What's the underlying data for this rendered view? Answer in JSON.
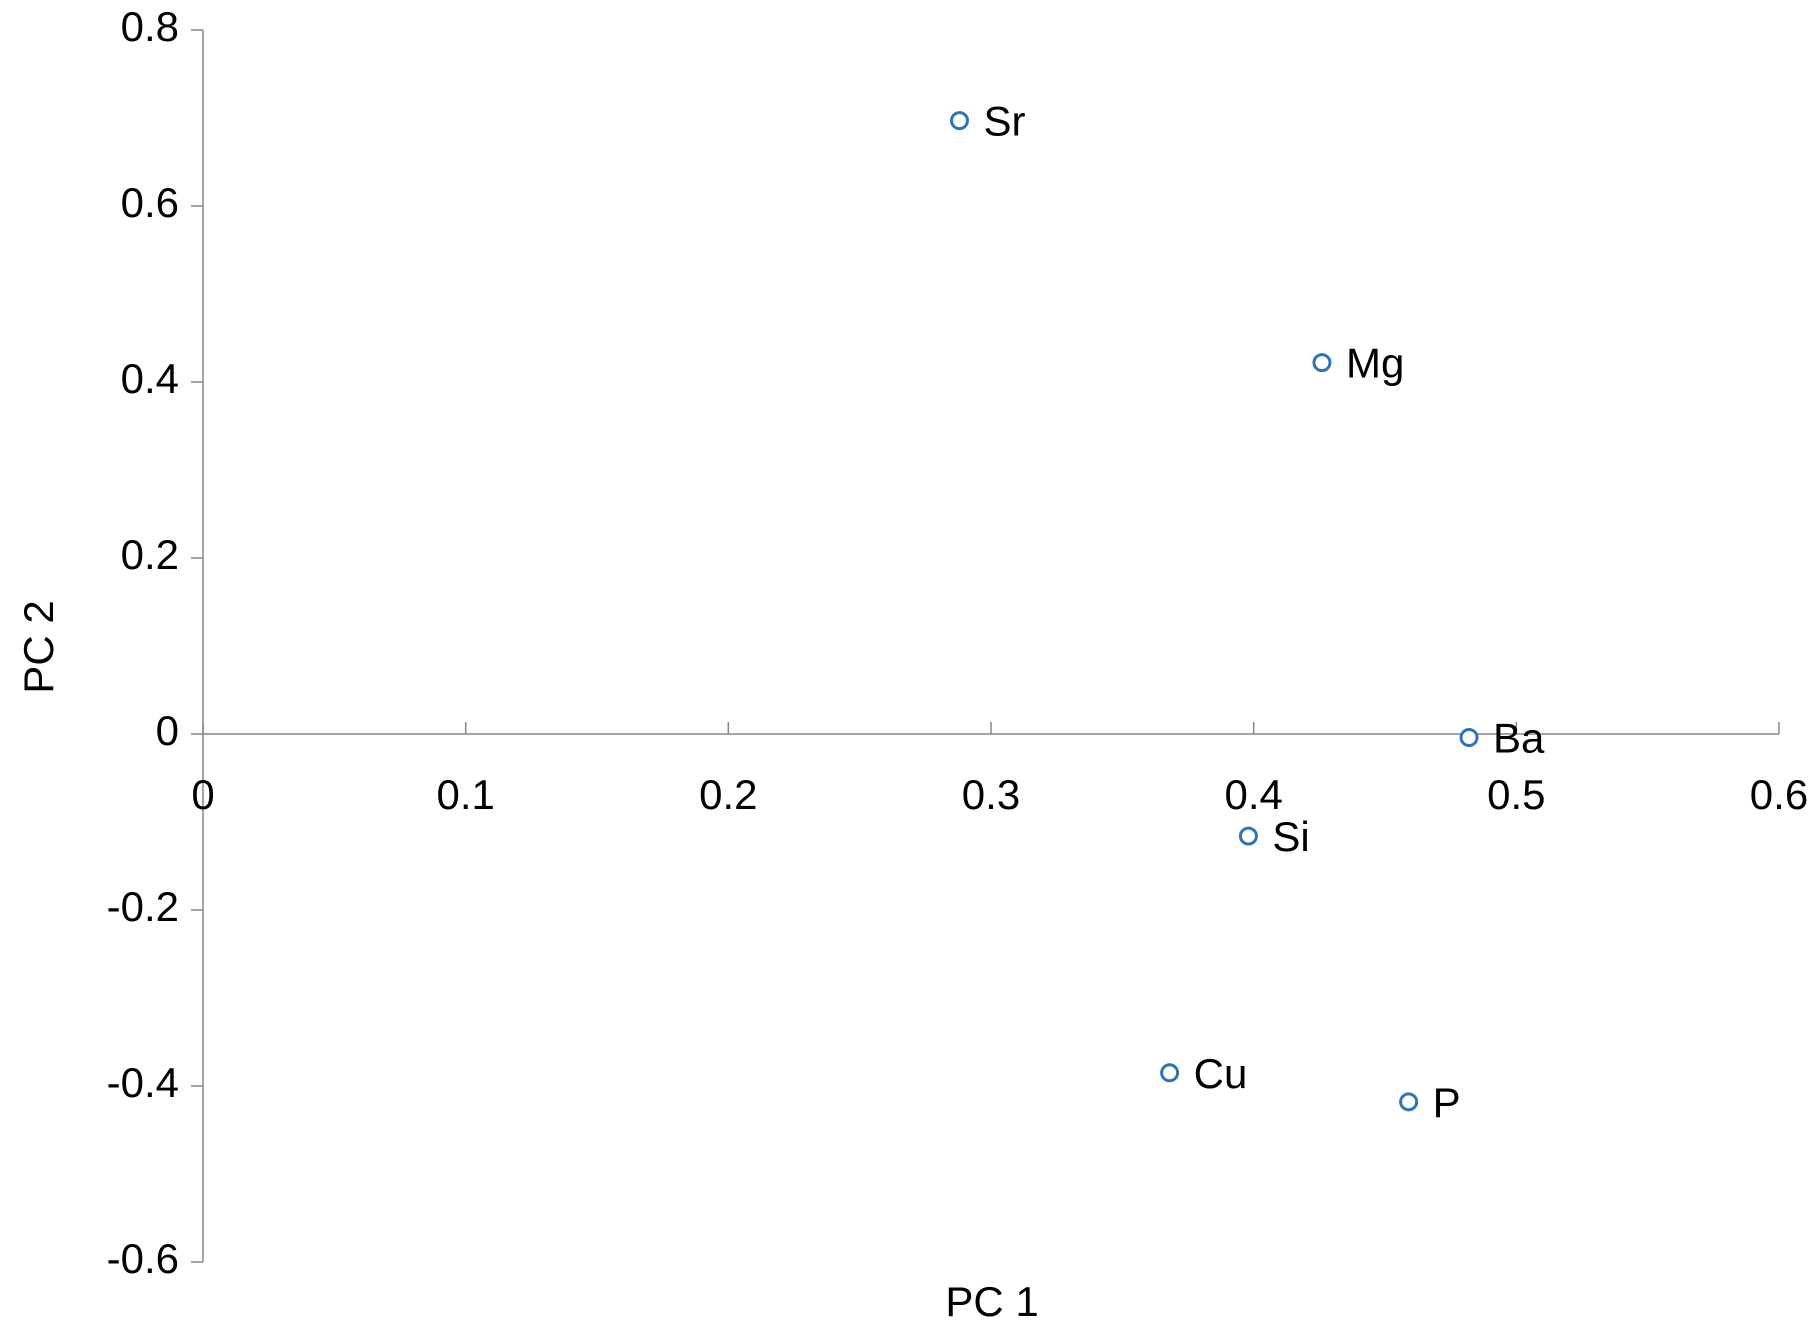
{
  "chart_data": {
    "type": "scatter",
    "x_label": "PC 1",
    "y_label": "PC 2",
    "labels": [
      "Sr",
      "Mg",
      "Ba",
      "Si",
      "Cu",
      "P"
    ],
    "x": [
      0.288,
      0.426,
      0.482,
      0.398,
      0.368,
      0.459
    ],
    "values": [
      0.697,
      0.422,
      -0.004,
      -0.116,
      -0.385,
      -0.418
    ],
    "color": "#2e75b6",
    "xlim": [
      0,
      0.6
    ],
    "xticks": [
      0,
      0.1,
      0.2,
      0.3,
      0.4,
      0.5,
      0.6
    ],
    "ylim": [
      -0.6,
      0.8
    ],
    "yticks": [
      -0.6,
      -0.4,
      -0.2,
      0,
      0.2,
      0.4,
      0.6,
      0.8
    ],
    "grid": false
  }
}
